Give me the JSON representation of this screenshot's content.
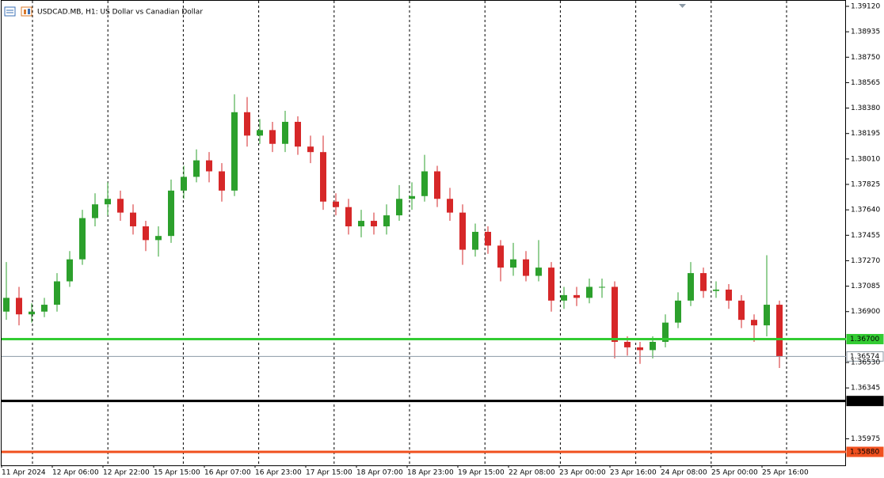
{
  "chart_data": {
    "type": "candlestick",
    "title": "USDCAD.MB, H1:  US Dollar vs Canadian Dollar",
    "up_color": "#2ca02c",
    "down_color": "#d62728",
    "ylim": [
      1.35782,
      1.39166
    ],
    "yticks": [
      {
        "value": 1.3912,
        "label": "1.39120"
      },
      1.38935,
      {
        "value": 1.3875,
        "label": "1.38750"
      },
      1.38565,
      {
        "value": 1.3838,
        "label": "1.38380"
      },
      1.38195,
      {
        "value": 1.3801,
        "label": "1.38010"
      },
      1.37825,
      {
        "value": 1.3764,
        "label": "1.37640"
      },
      1.37455,
      {
        "value": 1.3727,
        "label": "1.37270"
      },
      1.37085,
      {
        "value": 1.369,
        "label": "1.36900"
      },
      {
        "value": 1.3653,
        "label": "1.36530"
      },
      1.36345,
      1.35975
    ],
    "xticks": [
      {
        "value": 0,
        "label": "11 Apr 2024"
      },
      {
        "value": 4,
        "label": "12 Apr 06:00"
      },
      {
        "value": 8,
        "label": "12 Apr 22:00"
      },
      {
        "value": 12,
        "label": "15 Apr 15:00"
      },
      {
        "value": 16,
        "label": "16 Apr 07:00"
      },
      {
        "value": 20,
        "label": "16 Apr 23:00"
      },
      {
        "value": 24,
        "label": "17 Apr 15:00"
      },
      {
        "value": 28,
        "label": "18 Apr 07:00"
      },
      {
        "value": 32,
        "label": "18 Apr 23:00"
      },
      {
        "value": 36,
        "label": "19 Apr 15:00"
      },
      {
        "value": 40,
        "label": "22 Apr 08:00"
      },
      {
        "value": 44,
        "label": "23 Apr 00:00"
      },
      {
        "value": 48,
        "label": "23 Apr 16:00"
      },
      {
        "value": 52,
        "label": "24 Apr 08:00"
      },
      {
        "value": 56,
        "label": "25 Apr 00:00"
      },
      {
        "value": 60,
        "label": "25 Apr 16:00"
      }
    ],
    "levels": [
      {
        "value": 1.367,
        "label": "1.36700",
        "color": "#33cc33"
      },
      {
        "value": 1.36574,
        "label": "1.36574",
        "color": "#8c9aa6"
      },
      {
        "value": 1.3625,
        "label": "1.36250",
        "color": "#000000"
      },
      {
        "value": 1.3588,
        "label": "1.35880",
        "color": "#f0501e"
      }
    ],
    "open": [
      1.369,
      1.37,
      1.3688,
      1.369,
      1.3695,
      1.3712,
      1.3728,
      1.3758,
      1.3768,
      1.3772,
      1.3762,
      1.3752,
      1.3742,
      1.3745,
      1.3778,
      1.3788,
      1.38,
      1.3792,
      1.3778,
      1.3835,
      1.3818,
      1.3822,
      1.3812,
      1.3828,
      1.381,
      1.3806,
      1.377,
      1.3766,
      1.3752,
      1.3756,
      1.3752,
      1.376,
      1.3772,
      1.3774,
      1.3792,
      1.3772,
      1.3762,
      1.3735,
      1.3748,
      1.3738,
      1.3722,
      1.3728,
      1.3716,
      1.3722,
      1.3698,
      1.3702,
      1.37,
      1.3708,
      1.3708,
      1.3668,
      1.3664,
      1.3662,
      1.3668,
      1.3682,
      1.3698,
      1.3718,
      1.3705,
      1.3706,
      1.3698,
      1.3684,
      1.368,
      1.3695
    ],
    "high": [
      1.3726,
      1.3708,
      1.3696,
      1.37,
      1.3718,
      1.3734,
      1.3764,
      1.3776,
      1.3784,
      1.3778,
      1.3768,
      1.3756,
      1.3752,
      1.3786,
      1.3796,
      1.3808,
      1.3806,
      1.3798,
      1.3848,
      1.3846,
      1.383,
      1.3828,
      1.3836,
      1.3832,
      1.3818,
      1.3818,
      1.3776,
      1.3772,
      1.3764,
      1.3762,
      1.3768,
      1.3782,
      1.3784,
      1.3804,
      1.3796,
      1.378,
      1.3768,
      1.3754,
      1.3752,
      1.3742,
      1.374,
      1.3734,
      1.3742,
      1.3726,
      1.3708,
      1.3708,
      1.3714,
      1.3714,
      1.3712,
      1.3672,
      1.3668,
      1.3672,
      1.3688,
      1.3704,
      1.3726,
      1.3722,
      1.3712,
      1.371,
      1.3702,
      1.3688,
      1.3731,
      1.3698
    ],
    "low": [
      1.3684,
      1.368,
      1.3682,
      1.3686,
      1.369,
      1.3708,
      1.3724,
      1.3752,
      1.376,
      1.3756,
      1.3746,
      1.3734,
      1.373,
      1.374,
      1.3772,
      1.3784,
      1.3784,
      1.377,
      1.3774,
      1.381,
      1.3812,
      1.3806,
      1.3806,
      1.3804,
      1.3798,
      1.3764,
      1.376,
      1.3746,
      1.3744,
      1.3746,
      1.3746,
      1.3756,
      1.3764,
      1.377,
      1.3766,
      1.3756,
      1.3724,
      1.373,
      1.3732,
      1.3712,
      1.3716,
      1.3712,
      1.3712,
      1.369,
      1.3692,
      1.3694,
      1.3696,
      1.37,
      1.3656,
      1.3658,
      1.3652,
      1.3656,
      1.3664,
      1.3678,
      1.3694,
      1.37,
      1.37,
      1.3692,
      1.3678,
      1.3668,
      1.3672,
      1.3649
    ],
    "close": [
      1.37,
      1.3688,
      1.369,
      1.3695,
      1.3712,
      1.3728,
      1.3758,
      1.3768,
      1.3772,
      1.3762,
      1.3752,
      1.3742,
      1.3745,
      1.3778,
      1.3788,
      1.38,
      1.3792,
      1.3778,
      1.3835,
      1.3818,
      1.3822,
      1.3812,
      1.3828,
      1.381,
      1.3806,
      1.377,
      1.3766,
      1.3752,
      1.3756,
      1.3752,
      1.376,
      1.3772,
      1.3774,
      1.3792,
      1.3772,
      1.3762,
      1.3735,
      1.3748,
      1.3738,
      1.3722,
      1.3728,
      1.3716,
      1.3722,
      1.3698,
      1.3702,
      1.37,
      1.3708,
      1.3708,
      1.3668,
      1.3664,
      1.3662,
      1.3668,
      1.3682,
      1.3698,
      1.3718,
      1.3705,
      1.3706,
      1.3698,
      1.3684,
      1.368,
      1.3695,
      1.36574
    ]
  }
}
